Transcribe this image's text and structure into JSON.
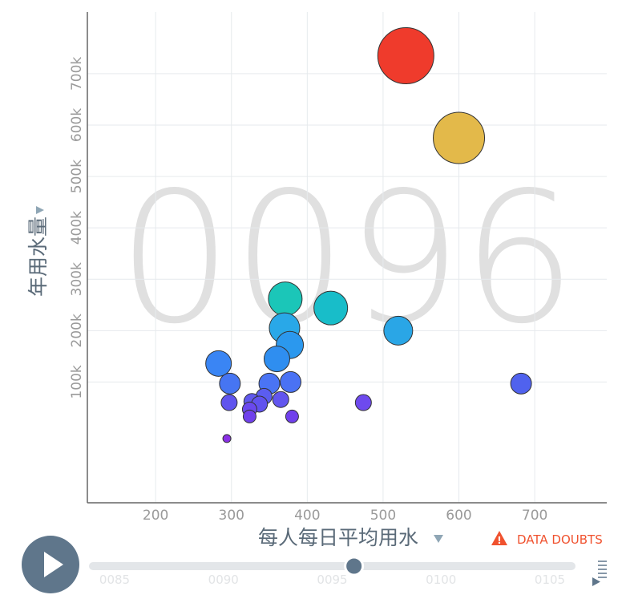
{
  "chart_data": {
    "type": "scatter",
    "big_label": "0096",
    "xlabel": "每人每日平均用水",
    "ylabel": "年用水量",
    "xlim": [
      110,
      795
    ],
    "ylim": [
      -135000,
      820000
    ],
    "x_ticks": [
      200,
      300,
      400,
      500,
      600,
      700
    ],
    "x_tick_labels": [
      "200",
      "300",
      "400",
      "500",
      "600",
      "700"
    ],
    "y_ticks": [
      100000,
      200000,
      300000,
      400000,
      500000,
      600000,
      700000
    ],
    "y_tick_labels": [
      "100k",
      "200k",
      "300k",
      "400k",
      "500k",
      "600k",
      "700k"
    ],
    "grid": true,
    "points": [
      {
        "x": 530,
        "y": 735000,
        "size": 35,
        "color": "#ef3b2c"
      },
      {
        "x": 600,
        "y": 575000,
        "size": 32,
        "color": "#e3b94a"
      },
      {
        "x": 371,
        "y": 262000,
        "size": 21,
        "color": "#1bc6b8"
      },
      {
        "x": 431,
        "y": 244000,
        "size": 21,
        "color": "#18bdc9"
      },
      {
        "x": 370,
        "y": 205000,
        "size": 19,
        "color": "#29a8e8"
      },
      {
        "x": 520,
        "y": 200000,
        "size": 18,
        "color": "#2aa6e6"
      },
      {
        "x": 377,
        "y": 172000,
        "size": 17,
        "color": "#2b98ee"
      },
      {
        "x": 360,
        "y": 145000,
        "size": 16,
        "color": "#2f8ef0"
      },
      {
        "x": 283,
        "y": 136000,
        "size": 16,
        "color": "#3a85f4"
      },
      {
        "x": 298,
        "y": 97000,
        "size": 13,
        "color": "#4675f2"
      },
      {
        "x": 350,
        "y": 97000,
        "size": 13,
        "color": "#4a74f4"
      },
      {
        "x": 378,
        "y": 100000,
        "size": 13,
        "color": "#4a72f4"
      },
      {
        "x": 682,
        "y": 97000,
        "size": 13,
        "color": "#5062ee"
      },
      {
        "x": 343,
        "y": 72000,
        "size": 10,
        "color": "#5b5df0"
      },
      {
        "x": 327,
        "y": 62000,
        "size": 10,
        "color": "#6058ee"
      },
      {
        "x": 297,
        "y": 60000,
        "size": 10,
        "color": "#6054ee"
      },
      {
        "x": 337,
        "y": 57000,
        "size": 10,
        "color": "#6152ee"
      },
      {
        "x": 365,
        "y": 66000,
        "size": 10,
        "color": "#6256ee"
      },
      {
        "x": 474,
        "y": 60000,
        "size": 10,
        "color": "#6e4aee"
      },
      {
        "x": 324,
        "y": 47000,
        "size": 9,
        "color": "#6a48ee"
      },
      {
        "x": 324,
        "y": 33000,
        "size": 8,
        "color": "#7040ec"
      },
      {
        "x": 380,
        "y": 33000,
        "size": 8,
        "color": "#7040ec"
      },
      {
        "x": 294,
        "y": -10000,
        "size": 5,
        "color": "#8a30e6"
      }
    ]
  },
  "controls": {
    "data_doubts_label": "DATA DOUBTS",
    "play_icon": "play-icon",
    "warning_icon": "warning-triangle-icon",
    "speed_icon": "speed-menu-icon",
    "timeline_labels": [
      "0085",
      "0090",
      "0095",
      "0100",
      "0105"
    ],
    "timeline_start": 83.5,
    "timeline_end": 106,
    "timeline_current": 96
  }
}
